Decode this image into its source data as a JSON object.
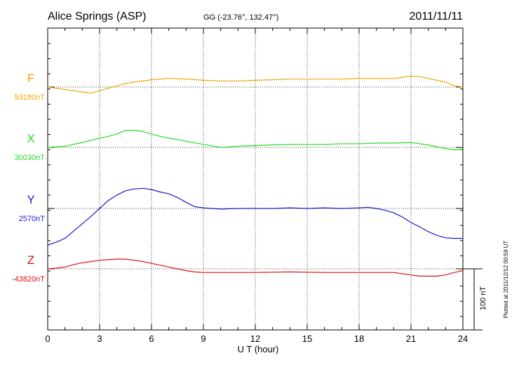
{
  "station": {
    "name": "Alice Springs (ASP)",
    "coords": "GG (-23.76°, 132.47°)",
    "date": "2011/11/11"
  },
  "scale_bar": {
    "label": "100 nT",
    "nT": 100
  },
  "plotted_note": "Plotted at 2011/12/12 00:59 UT",
  "chart_data": {
    "type": "line",
    "title": "Alice Springs (ASP)",
    "subtitle": "GG (-23.76°, 132.47°)",
    "date": "2011/11/11",
    "xlabel": "U T (hour)",
    "xlim": [
      0,
      24
    ],
    "xticks": [
      0,
      3,
      6,
      9,
      12,
      15,
      18,
      21,
      24
    ],
    "grid": true,
    "series": [
      {
        "name": "F",
        "baseline_label": "53180nT",
        "baseline_nT": 53180,
        "color": "#F2A500",
        "x": [
          0,
          1,
          2,
          2.5,
          3,
          3.5,
          4,
          4.5,
          5,
          6,
          7,
          8,
          9,
          10,
          11,
          12,
          13,
          14,
          15,
          16,
          17,
          18,
          19,
          20,
          20.5,
          21,
          21.5,
          22,
          23,
          23.5,
          24
        ],
        "y": [
          53180,
          53176,
          53172,
          53170,
          53174,
          53178,
          53182,
          53186,
          53188,
          53192,
          53194,
          53193,
          53191,
          53190,
          53190,
          53191,
          53192,
          53193,
          53193,
          53193,
          53193,
          53194,
          53194,
          53194,
          53196,
          53198,
          53197,
          53194,
          53188,
          53182,
          53180
        ]
      },
      {
        "name": "X",
        "baseline_label": "30030nT",
        "baseline_nT": 30030,
        "color": "#22DD22",
        "x": [
          0,
          1,
          2,
          3,
          3.5,
          4,
          4.5,
          5,
          5.5,
          6,
          6.5,
          7,
          7.5,
          8,
          9,
          10,
          11,
          12,
          13,
          14,
          15,
          16,
          17,
          18,
          19,
          20,
          21,
          21.5,
          22,
          23,
          23.5,
          24
        ],
        "y": [
          30030,
          30032,
          30038,
          30045,
          30048,
          30052,
          30058,
          30058,
          30056,
          30052,
          30048,
          30045,
          30043,
          30040,
          30035,
          30030,
          30032,
          30033,
          30034,
          30035,
          30035,
          30035,
          30036,
          30036,
          30037,
          30037,
          30038,
          30036,
          30034,
          30028,
          30026,
          30027
        ]
      },
      {
        "name": "Y",
        "baseline_label": "2570nT",
        "baseline_nT": 2570,
        "color": "#1A1ACC",
        "x": [
          0,
          0.5,
          1,
          1.5,
          2,
          2.5,
          3,
          3.5,
          4,
          4.5,
          5,
          5.5,
          6,
          6.5,
          7,
          7.5,
          8,
          8.5,
          9,
          10,
          11,
          12,
          13,
          14,
          15,
          16,
          17,
          18,
          18.5,
          19,
          19.5,
          20,
          20.5,
          21,
          21.5,
          22,
          22.5,
          23,
          23.5,
          24
        ],
        "y": [
          2510,
          2515,
          2521,
          2533,
          2545,
          2557,
          2570,
          2583,
          2592,
          2599,
          2602,
          2603,
          2601,
          2597,
          2594,
          2588,
          2580,
          2573,
          2571,
          2569,
          2570,
          2570,
          2570,
          2571,
          2570,
          2571,
          2570,
          2571,
          2572,
          2570,
          2567,
          2563,
          2556,
          2547,
          2540,
          2532,
          2526,
          2522,
          2521,
          2521
        ]
      },
      {
        "name": "Z",
        "baseline_label": "-43820nT",
        "baseline_nT": -43820,
        "color": "#DD1111",
        "x": [
          0,
          0.5,
          1,
          1.5,
          2,
          2.5,
          3,
          3.5,
          4,
          4.5,
          5,
          5.5,
          6,
          6.5,
          7,
          7.5,
          8,
          8.5,
          9,
          10,
          12,
          14,
          16,
          18,
          19,
          20,
          20.5,
          21,
          21.5,
          22,
          22.5,
          23,
          23.5,
          24
        ],
        "y": [
          -43820,
          -43819,
          -43817,
          -43813,
          -43810,
          -43808,
          -43806,
          -43805,
          -43804,
          -43804,
          -43806,
          -43808,
          -43811,
          -43814,
          -43817,
          -43820,
          -43823,
          -43825,
          -43826,
          -43826,
          -43826,
          -43825,
          -43826,
          -43826,
          -43826,
          -43826,
          -43828,
          -43830,
          -43832,
          -43832,
          -43832,
          -43830,
          -43826,
          -43823
        ]
      }
    ]
  }
}
